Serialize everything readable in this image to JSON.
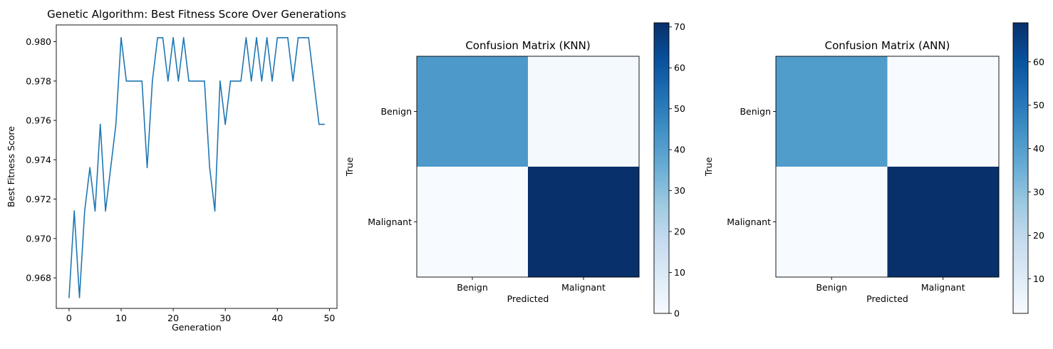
{
  "chart_data": [
    {
      "type": "line",
      "title": "Genetic Algorithm: Best Fitness Score Over Generations",
      "xlabel": "Generation",
      "ylabel": "Best Fitness Score",
      "xlim": [
        -2.45,
        51.45
      ],
      "ylim": [
        0.96645,
        0.98085
      ],
      "xticks": [
        0,
        10,
        20,
        30,
        40,
        50
      ],
      "yticks": [
        0.968,
        0.97,
        0.972,
        0.974,
        0.976,
        0.978,
        0.98
      ],
      "ytick_labels": [
        "0.968",
        "0.970",
        "0.972",
        "0.974",
        "0.976",
        "0.978",
        "0.980"
      ],
      "grid": false,
      "color": "#1f77b4",
      "x": [
        0,
        1,
        2,
        3,
        4,
        5,
        6,
        7,
        8,
        9,
        10,
        11,
        12,
        13,
        14,
        15,
        16,
        17,
        18,
        19,
        20,
        21,
        22,
        23,
        24,
        25,
        26,
        27,
        28,
        29,
        30,
        31,
        32,
        33,
        34,
        35,
        36,
        37,
        38,
        39,
        40,
        41,
        42,
        43,
        44,
        45,
        46,
        47,
        48,
        49
      ],
      "y": [
        0.967,
        0.9714,
        0.967,
        0.9714,
        0.9736,
        0.9714,
        0.9758,
        0.9714,
        0.9736,
        0.9758,
        0.9802,
        0.978,
        0.978,
        0.978,
        0.978,
        0.9736,
        0.978,
        0.9802,
        0.9802,
        0.978,
        0.9802,
        0.978,
        0.9802,
        0.978,
        0.978,
        0.978,
        0.978,
        0.9736,
        0.9714,
        0.978,
        0.9758,
        0.978,
        0.978,
        0.978,
        0.9802,
        0.978,
        0.9802,
        0.978,
        0.9802,
        0.978,
        0.9802,
        0.9802,
        0.9802,
        0.978,
        0.9802,
        0.9802,
        0.9802,
        0.978,
        0.9758,
        0.9758
      ]
    },
    {
      "type": "heatmap",
      "title": "Confusion Matrix (KNN)",
      "xlabel": "Predicted",
      "ylabel": "True",
      "xtick_labels": [
        "Benign",
        "Malignant"
      ],
      "ytick_labels": [
        "Benign",
        "Malignant"
      ],
      "values": [
        [
          42,
          1
        ],
        [
          0,
          71
        ]
      ],
      "colormap": "Blues",
      "colorbar": {
        "min": 0,
        "max": 71,
        "ticks": [
          0,
          10,
          20,
          30,
          40,
          50,
          60,
          70
        ]
      }
    },
    {
      "type": "heatmap",
      "title": "Confusion Matrix (ANN)",
      "xlabel": "Predicted",
      "ylabel": "True",
      "xtick_labels": [
        "Benign",
        "Malignant"
      ],
      "ytick_labels": [
        "Benign",
        "Malignant"
      ],
      "values": [
        [
          41,
          2
        ],
        [
          2,
          69
        ]
      ],
      "colormap": "Blues",
      "colorbar": {
        "min": 2,
        "max": 69,
        "ticks": [
          10,
          20,
          30,
          40,
          50,
          60
        ]
      }
    }
  ]
}
